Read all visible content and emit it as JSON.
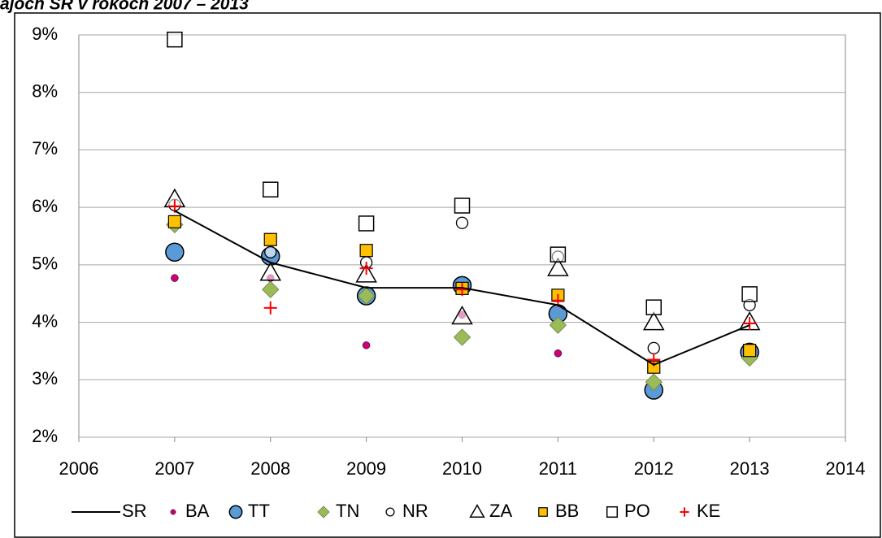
{
  "chart_data": {
    "type": "scatter-line",
    "title": "ajoch SR v rokoch 2007 – 2013",
    "x": [
      2007,
      2008,
      2009,
      2010,
      2011,
      2012,
      2013
    ],
    "xlim": [
      2006,
      2014
    ],
    "xticks": [
      2006,
      2007,
      2008,
      2009,
      2010,
      2011,
      2012,
      2013,
      2014
    ],
    "ylim": [
      2,
      9
    ],
    "yticks": [
      {
        "value": 2,
        "label": "2%"
      },
      {
        "value": 3,
        "label": "3%"
      },
      {
        "value": 4,
        "label": "4%"
      },
      {
        "value": 5,
        "label": "5%"
      },
      {
        "value": 6,
        "label": "6%"
      },
      {
        "value": 7,
        "label": "7%"
      },
      {
        "value": 8,
        "label": "8%"
      },
      {
        "value": 9,
        "label": "9%"
      }
    ],
    "grid": true,
    "legend": "bottom",
    "series": [
      {
        "name": "SR",
        "marker": "line",
        "color": "#000000",
        "values": [
          5.94,
          5.04,
          4.6,
          4.6,
          4.3,
          3.26,
          3.95
        ]
      },
      {
        "name": "BA",
        "marker": "dot",
        "color": "#cc0077",
        "values": [
          4.77,
          4.77,
          3.6,
          4.13,
          3.46,
          2.9,
          3.45
        ]
      },
      {
        "name": "TT",
        "marker": "big-circle",
        "color": "#5b9bd5",
        "values": [
          5.22,
          5.15,
          4.46,
          4.64,
          4.15,
          2.82,
          3.48
        ]
      },
      {
        "name": "TN",
        "marker": "diamond",
        "color": "#9bbb59",
        "values": [
          5.7,
          4.57,
          4.46,
          3.74,
          3.95,
          2.96,
          3.38
        ]
      },
      {
        "name": "NR",
        "marker": "open-circle",
        "color": "#000000",
        "values": [
          6.04,
          5.22,
          5.04,
          5.73,
          5.14,
          3.55,
          4.3
        ]
      },
      {
        "name": "ZA",
        "marker": "triangle",
        "color": "#000000",
        "values": [
          6.14,
          4.86,
          4.83,
          4.1,
          4.94,
          4.0,
          4.0
        ]
      },
      {
        "name": "BB",
        "marker": "square",
        "color": "#ffc000",
        "values": [
          5.75,
          5.44,
          5.25,
          4.59,
          4.47,
          3.22,
          3.51
        ]
      },
      {
        "name": "PO",
        "marker": "open-square",
        "color": "#000000",
        "values": [
          8.92,
          6.31,
          5.72,
          6.03,
          5.18,
          4.26,
          4.49
        ]
      },
      {
        "name": "KE",
        "marker": "plus",
        "color": "#ff0000",
        "values": [
          6.02,
          4.25,
          4.94,
          4.57,
          4.38,
          3.35,
          3.98
        ]
      }
    ]
  }
}
